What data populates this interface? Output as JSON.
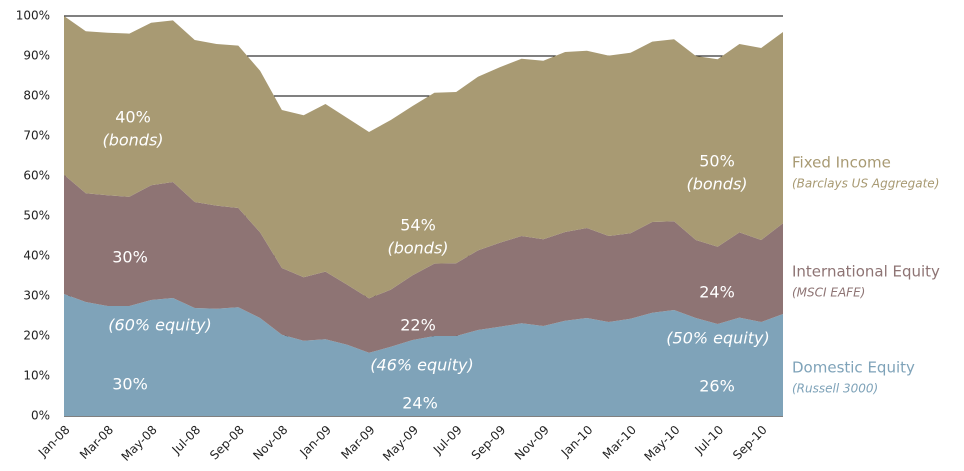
{
  "chart_data": {
    "type": "stacked-area",
    "categories": [
      "Jan-08",
      null,
      "Mar-08",
      null,
      "May-08",
      null,
      "Jul-08",
      null,
      "Sep-08",
      null,
      "Nov-08",
      null,
      "Jan-09",
      null,
      "Mar-09",
      null,
      "May-09",
      null,
      "Jul-09",
      null,
      "Sep-09",
      null,
      "Nov-09",
      null,
      "Jan-10",
      null,
      "Mar-10",
      null,
      "May-10",
      null,
      "Jul-10",
      null,
      "Sep-10",
      null
    ],
    "series": [
      {
        "name": "Domestic Equity",
        "index": "(Russell 3000)",
        "color": "#7fa3b9",
        "values": [
          30.5,
          28.5,
          27.5,
          27.5,
          29,
          29.5,
          27,
          26.8,
          27.2,
          24.5,
          20.3,
          18.8,
          19.2,
          17.8,
          15.8,
          17.3,
          19,
          20,
          20,
          21.5,
          22.3,
          23.2,
          22.5,
          23.8,
          24.5,
          23.5,
          24.3,
          25.8,
          26.5,
          24.5,
          23,
          24.6,
          23.5,
          25.5
        ]
      },
      {
        "name": "International Equity",
        "index": "(MSCI EAFE)",
        "color": "#8e7474",
        "values": [
          29.8,
          27.2,
          27.7,
          27.3,
          28.7,
          29,
          26.5,
          25.8,
          24.8,
          21.4,
          16.7,
          15.9,
          16.9,
          15,
          13.6,
          14.3,
          16.2,
          18.1,
          18.2,
          19.9,
          21,
          21.8,
          21.7,
          22.2,
          22.5,
          21.5,
          21.4,
          22.7,
          22.2,
          19.5,
          19.3,
          21.3,
          20.5,
          22.7
        ]
      },
      {
        "name": "Fixed Income",
        "index": "(Barclays US Aggregate)",
        "color": "#a89a73",
        "values": [
          39.7,
          40.5,
          40.6,
          40.8,
          40.6,
          40.4,
          40.5,
          40.4,
          40.6,
          40.4,
          39.5,
          40.5,
          41.9,
          41.7,
          41.6,
          42.4,
          42.3,
          42.7,
          42.8,
          43.4,
          43.9,
          44.3,
          44.6,
          45,
          44.3,
          45.1,
          45.1,
          45.1,
          45.5,
          46,
          46.9,
          47.1,
          48,
          47.8
        ]
      }
    ],
    "ylim": [
      0,
      100
    ],
    "yticks": [
      {
        "value": 0,
        "label": "0%"
      },
      {
        "value": 10,
        "label": "10%"
      },
      {
        "value": 20,
        "label": "20%"
      },
      {
        "value": 30,
        "label": "30%"
      },
      {
        "value": 40,
        "label": "40%"
      },
      {
        "value": 50,
        "label": "50%"
      },
      {
        "value": 60,
        "label": "60%"
      },
      {
        "value": 70,
        "label": "70%"
      },
      {
        "value": 80,
        "label": "80%"
      },
      {
        "value": 90,
        "label": "90%"
      },
      {
        "value": 100,
        "label": "100%"
      }
    ],
    "grid": true,
    "annotations": [
      "40%",
      "(bonds)",
      "30%",
      "(60% equity)",
      "30%",
      "54%",
      "(bonds)",
      "22%",
      "(46% equity)",
      "24%",
      "50%",
      "(bonds)",
      "24%",
      "(50% equity)",
      "26%"
    ]
  }
}
